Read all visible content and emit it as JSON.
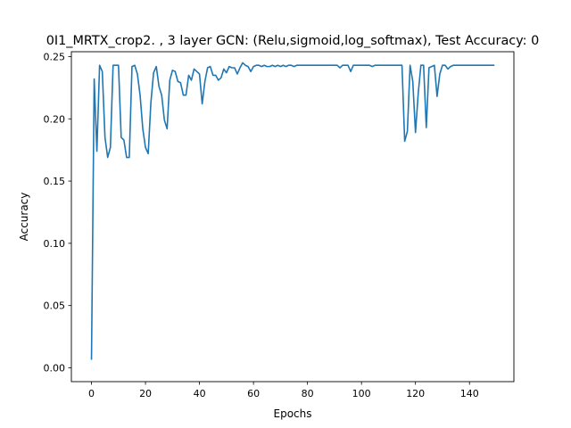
{
  "chart_data": {
    "type": "line",
    "title": "0I1_MRTX_crop2. , 3 layer GCN: (Relu,sigmoid,log_softmax), Test Accuracy: 0",
    "xlabel": "Epochs",
    "ylabel": "Accuracy",
    "xlim": [
      -7.45,
      156.45
    ],
    "ylim": [
      -0.0111,
      0.2539
    ],
    "xticks": [
      0,
      20,
      40,
      60,
      80,
      100,
      120,
      140
    ],
    "yticks": [
      0.0,
      0.05,
      0.1,
      0.15,
      0.2,
      0.25
    ],
    "ytick_labels": [
      "0.00",
      "0.05",
      "0.10",
      "0.15",
      "0.20",
      "0.25"
    ],
    "grid": false,
    "line_color": "#1f77b4",
    "x": [
      0,
      1,
      2,
      3,
      4,
      5,
      6,
      7,
      8,
      9,
      10,
      11,
      12,
      13,
      14,
      15,
      16,
      17,
      18,
      19,
      20,
      21,
      22,
      23,
      24,
      25,
      26,
      27,
      28,
      29,
      30,
      31,
      32,
      33,
      34,
      35,
      36,
      37,
      38,
      39,
      40,
      41,
      42,
      43,
      44,
      45,
      46,
      47,
      48,
      49,
      50,
      51,
      52,
      53,
      54,
      55,
      56,
      57,
      58,
      59,
      60,
      61,
      62,
      63,
      64,
      65,
      66,
      67,
      68,
      69,
      70,
      71,
      72,
      73,
      74,
      75,
      76,
      77,
      78,
      79,
      80,
      81,
      82,
      83,
      84,
      85,
      86,
      87,
      88,
      89,
      90,
      91,
      92,
      93,
      94,
      95,
      96,
      97,
      98,
      99,
      100,
      101,
      102,
      103,
      104,
      105,
      106,
      107,
      108,
      109,
      110,
      111,
      112,
      113,
      114,
      115,
      116,
      117,
      118,
      119,
      120,
      121,
      122,
      123,
      124,
      125,
      126,
      127,
      128,
      129,
      130,
      131,
      132,
      133,
      134,
      135,
      136,
      137,
      138,
      139,
      140,
      141,
      142,
      143,
      144,
      145,
      146,
      147,
      148,
      149
    ],
    "y": [
      0.007,
      0.232,
      0.174,
      0.243,
      0.238,
      0.185,
      0.169,
      0.177,
      0.243,
      0.243,
      0.243,
      0.185,
      0.183,
      0.169,
      0.169,
      0.242,
      0.243,
      0.236,
      0.219,
      0.192,
      0.177,
      0.172,
      0.213,
      0.237,
      0.242,
      0.226,
      0.219,
      0.199,
      0.192,
      0.231,
      0.239,
      0.238,
      0.23,
      0.229,
      0.219,
      0.219,
      0.235,
      0.231,
      0.24,
      0.238,
      0.236,
      0.212,
      0.23,
      0.241,
      0.242,
      0.235,
      0.235,
      0.231,
      0.233,
      0.24,
      0.237,
      0.242,
      0.241,
      0.241,
      0.236,
      0.241,
      0.245,
      0.243,
      0.242,
      0.238,
      0.242,
      0.243,
      0.243,
      0.242,
      0.243,
      0.242,
      0.242,
      0.243,
      0.242,
      0.243,
      0.242,
      0.243,
      0.242,
      0.243,
      0.243,
      0.242,
      0.243,
      0.243,
      0.243,
      0.243,
      0.243,
      0.243,
      0.243,
      0.243,
      0.243,
      0.243,
      0.243,
      0.243,
      0.243,
      0.243,
      0.243,
      0.243,
      0.241,
      0.243,
      0.243,
      0.243,
      0.238,
      0.243,
      0.243,
      0.243,
      0.243,
      0.243,
      0.243,
      0.243,
      0.242,
      0.243,
      0.243,
      0.243,
      0.243,
      0.243,
      0.243,
      0.243,
      0.243,
      0.243,
      0.243,
      0.243,
      0.182,
      0.19,
      0.243,
      0.23,
      0.189,
      0.22,
      0.243,
      0.243,
      0.193,
      0.241,
      0.242,
      0.243,
      0.218,
      0.236,
      0.243,
      0.243,
      0.24,
      0.242,
      0.243,
      0.243,
      0.243,
      0.243,
      0.243,
      0.243,
      0.243,
      0.243,
      0.243,
      0.243,
      0.243,
      0.243,
      0.243,
      0.243,
      0.243,
      0.243
    ]
  }
}
